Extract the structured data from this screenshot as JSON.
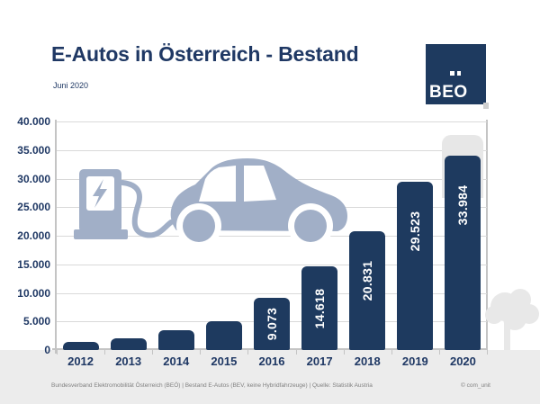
{
  "header": {
    "title": "E-Autos in Österreich - Bestand",
    "subtitle": "Juni 2020"
  },
  "logo": {
    "letters": "BEO",
    "name": "BEÖ"
  },
  "chart_data": {
    "type": "bar",
    "title": "E-Autos in Österreich - Bestand",
    "subtitle": "Juni 2020",
    "categories": [
      "2012",
      "2013",
      "2014",
      "2015",
      "2016",
      "2017",
      "2018",
      "2019",
      "2020"
    ],
    "values": [
      1389,
      2070,
      3386,
      5032,
      9073,
      14618,
      20831,
      29523,
      33984
    ],
    "data_labels": [
      null,
      null,
      null,
      null,
      "9.073",
      "14.618",
      "20.831",
      "29.523",
      "33.984"
    ],
    "ylim": [
      0,
      40000
    ],
    "ytick_interval": 5000,
    "ytick_labels": [
      "0",
      "5.000",
      "10.000",
      "15.000",
      "20.000",
      "25.000",
      "30.000",
      "35.000",
      "40.000"
    ],
    "grid": true,
    "legend": false,
    "bar_color": "#1E3A5F",
    "data_label_color": "#FFFFFF",
    "ghost_bar": {
      "category": "2020",
      "top_value": 37600,
      "color": "#E7E7E7"
    }
  },
  "footer": {
    "left": "Bundesverband Elektromobilität Österreich (BEÖ) | Bestand E-Autos (BEV, keine Hybridfahrzeuge) | Quelle: Statistik Austria",
    "right": "© com_unit"
  },
  "colors": {
    "navy": "#1F3864",
    "bar": "#1E3A5F",
    "illustration": "#A1AFC7",
    "grid": "#D9D9D9",
    "axis": "#C4C4C4",
    "strip": "#ECECEC",
    "ghost": "#E7E7E7",
    "tree": "#E8E8E8",
    "footer_text": "#808080"
  },
  "icons": {
    "lightning": "lightning-bolt",
    "car": "electric-car-silhouette",
    "charging_station": "charging-station",
    "tree": "tree-silhouette"
  }
}
